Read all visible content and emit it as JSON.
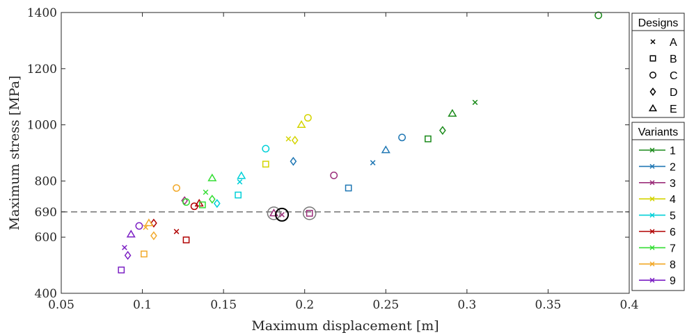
{
  "chart_data": {
    "type": "scatter",
    "title": "",
    "xlabel": "Maximum displacement [m]",
    "ylabel": "Maximum stress [MPa]",
    "xlim": [
      0.05,
      0.4
    ],
    "ylim": [
      400,
      1400
    ],
    "xticks": [
      0.05,
      0.1,
      0.15,
      0.2,
      0.25,
      0.3,
      0.35,
      0.4
    ],
    "xtick_labels": [
      "0.05",
      "0.1",
      "0.15",
      "0.2",
      "0.25",
      "0.3",
      "0.35",
      "0.4"
    ],
    "yticks": [
      400,
      600,
      690,
      800,
      1000,
      1200,
      1400
    ],
    "ytick_labels": [
      "400",
      "600",
      "690",
      "800",
      "1000",
      "1200",
      "1400"
    ],
    "threshold": 690,
    "grid": false,
    "designs_legend": {
      "title": "Designs",
      "entries": [
        {
          "label": "A",
          "marker": "x"
        },
        {
          "label": "B",
          "marker": "square"
        },
        {
          "label": "C",
          "marker": "circle"
        },
        {
          "label": "D",
          "marker": "diamond"
        },
        {
          "label": "E",
          "marker": "triangle"
        }
      ]
    },
    "variants_legend": {
      "title": "Variants",
      "entries": [
        {
          "label": "1",
          "color": "#1a8a1a"
        },
        {
          "label": "2",
          "color": "#1f77b4"
        },
        {
          "label": "3",
          "color": "#9b2d7a"
        },
        {
          "label": "4",
          "color": "#d4d400"
        },
        {
          "label": "5",
          "color": "#00d0d8"
        },
        {
          "label": "6",
          "color": "#b00000"
        },
        {
          "label": "7",
          "color": "#33dd33"
        },
        {
          "label": "8",
          "color": "#f2a92a"
        },
        {
          "label": "9",
          "color": "#7b1fc4"
        }
      ]
    },
    "series": [
      {
        "variant": "1",
        "points": [
          {
            "design": "A",
            "x": 0.305,
            "y": 1080
          },
          {
            "design": "B",
            "x": 0.276,
            "y": 950
          },
          {
            "design": "C",
            "x": 0.381,
            "y": 1390
          },
          {
            "design": "D",
            "x": 0.285,
            "y": 980
          },
          {
            "design": "E",
            "x": 0.291,
            "y": 1040
          }
        ]
      },
      {
        "variant": "2",
        "points": [
          {
            "design": "A",
            "x": 0.242,
            "y": 865
          },
          {
            "design": "B",
            "x": 0.227,
            "y": 775
          },
          {
            "design": "C",
            "x": 0.26,
            "y": 955
          },
          {
            "design": "D",
            "x": 0.193,
            "y": 870
          },
          {
            "design": "E",
            "x": 0.25,
            "y": 910
          }
        ]
      },
      {
        "variant": "3",
        "points": [
          {
            "design": "A",
            "x": 0.186,
            "y": 680
          },
          {
            "design": "B",
            "x": 0.203,
            "y": 685
          },
          {
            "design": "C",
            "x": 0.218,
            "y": 820
          },
          {
            "design": "D",
            "x": 0.126,
            "y": 730
          },
          {
            "design": "E",
            "x": 0.181,
            "y": 685
          }
        ]
      },
      {
        "variant": "4",
        "points": [
          {
            "design": "A",
            "x": 0.19,
            "y": 950
          },
          {
            "design": "B",
            "x": 0.176,
            "y": 860
          },
          {
            "design": "C",
            "x": 0.202,
            "y": 1025
          },
          {
            "design": "D",
            "x": 0.194,
            "y": 945
          },
          {
            "design": "E",
            "x": 0.198,
            "y": 1000
          }
        ]
      },
      {
        "variant": "5",
        "points": [
          {
            "design": "A",
            "x": 0.16,
            "y": 797
          },
          {
            "design": "B",
            "x": 0.159,
            "y": 750
          },
          {
            "design": "C",
            "x": 0.176,
            "y": 915
          },
          {
            "design": "D",
            "x": 0.146,
            "y": 720
          },
          {
            "design": "E",
            "x": 0.161,
            "y": 818
          }
        ]
      },
      {
        "variant": "6",
        "points": [
          {
            "design": "A",
            "x": 0.121,
            "y": 620
          },
          {
            "design": "B",
            "x": 0.127,
            "y": 590
          },
          {
            "design": "C",
            "x": 0.132,
            "y": 710
          },
          {
            "design": "D",
            "x": 0.107,
            "y": 650
          },
          {
            "design": "E",
            "x": 0.135,
            "y": 720
          }
        ]
      },
      {
        "variant": "7",
        "points": [
          {
            "design": "A",
            "x": 0.139,
            "y": 760
          },
          {
            "design": "B",
            "x": 0.137,
            "y": 715
          },
          {
            "design": "C",
            "x": 0.127,
            "y": 725
          },
          {
            "design": "D",
            "x": 0.143,
            "y": 735
          },
          {
            "design": "E",
            "x": 0.143,
            "y": 810
          }
        ]
      },
      {
        "variant": "8",
        "points": [
          {
            "design": "A",
            "x": 0.102,
            "y": 635
          },
          {
            "design": "B",
            "x": 0.101,
            "y": 540
          },
          {
            "design": "C",
            "x": 0.121,
            "y": 775
          },
          {
            "design": "D",
            "x": 0.107,
            "y": 605
          },
          {
            "design": "E",
            "x": 0.104,
            "y": 650
          }
        ]
      },
      {
        "variant": "9",
        "points": [
          {
            "design": "A",
            "x": 0.089,
            "y": 563
          },
          {
            "design": "B",
            "x": 0.087,
            "y": 483
          },
          {
            "design": "C",
            "x": 0.098,
            "y": 640
          },
          {
            "design": "D",
            "x": 0.091,
            "y": 535
          },
          {
            "design": "E",
            "x": 0.093,
            "y": 610
          }
        ]
      }
    ],
    "highlighted": [
      {
        "x": 0.181,
        "y": 685,
        "style": "gray-circle"
      },
      {
        "x": 0.186,
        "y": 680,
        "style": "black-circle"
      },
      {
        "x": 0.203,
        "y": 685,
        "style": "gray-circle"
      }
    ]
  }
}
